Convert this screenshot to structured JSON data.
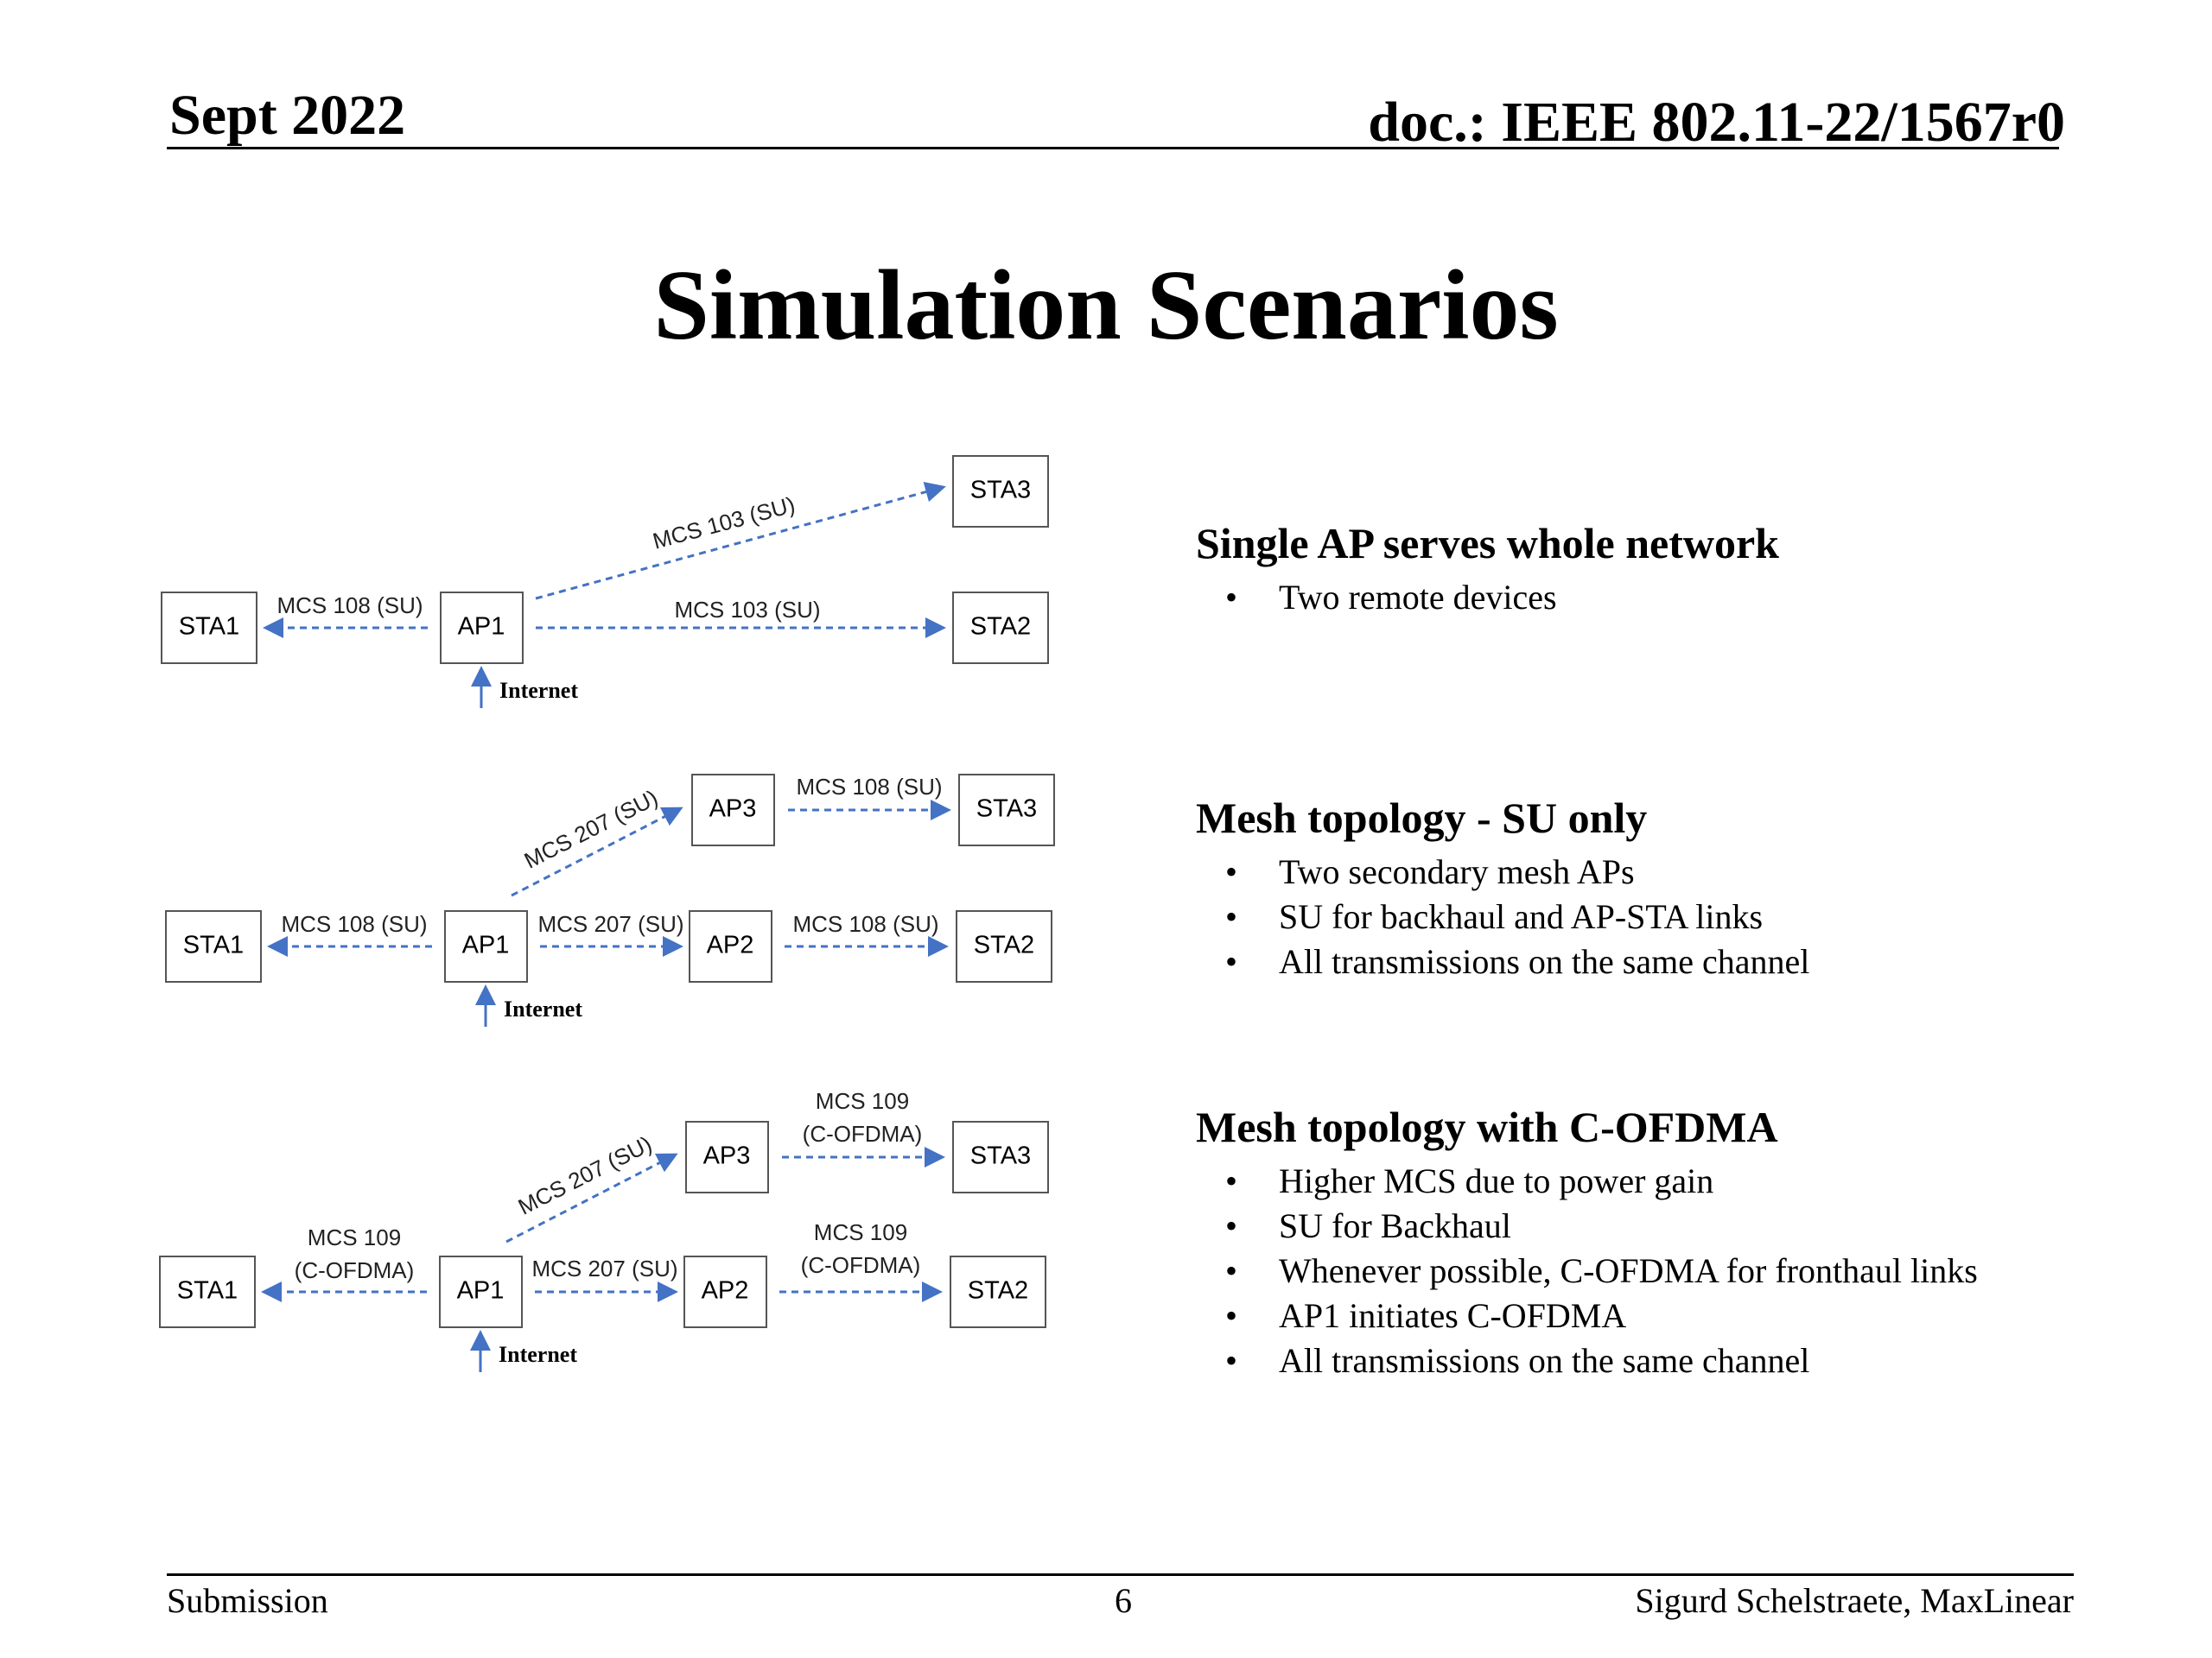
{
  "header": {
    "date": "Sept 2022",
    "doc": "doc.: IEEE 802.11-22/1567r0"
  },
  "title": "Simulation Scenarios",
  "diagrams": [
    {
      "nodes": {
        "sta1": "STA1",
        "ap1": "AP1",
        "sta3": "STA3",
        "sta2": "STA2"
      },
      "links": {
        "ap1_sta1": "MCS 108 (SU)",
        "ap1_sta3": "MCS 103 (SU)",
        "ap1_sta2": "MCS 103 (SU)"
      },
      "internet": "Internet"
    },
    {
      "nodes": {
        "sta1": "STA1",
        "ap1": "AP1",
        "ap3": "AP3",
        "sta3": "STA3",
        "ap2": "AP2",
        "sta2": "STA2"
      },
      "links": {
        "ap1_sta1": "MCS 108 (SU)",
        "ap1_ap3": "MCS 207 (SU)",
        "ap3_sta3": "MCS 108 (SU)",
        "ap1_ap2": "MCS 207 (SU)",
        "ap2_sta2": "MCS 108 (SU)"
      },
      "internet": "Internet"
    },
    {
      "nodes": {
        "sta1": "STA1",
        "ap1": "AP1",
        "ap3": "AP3",
        "sta3": "STA3",
        "ap2": "AP2",
        "sta2": "STA2"
      },
      "links": {
        "ap1_sta1_l1": "MCS 109",
        "ap1_sta1_l2": "(C-OFDMA)",
        "ap1_ap3": "MCS 207 (SU)",
        "ap3_sta3_l1": "MCS 109",
        "ap3_sta3_l2": "(C-OFDMA)",
        "ap1_ap2": "MCS 207 (SU)",
        "ap2_sta2_l1": "MCS 109",
        "ap2_sta2_l2": "(C-OFDMA)"
      },
      "internet": "Internet"
    }
  ],
  "sections": [
    {
      "heading": "Single AP serves whole network",
      "bullets": [
        "Two remote devices"
      ]
    },
    {
      "heading": "Mesh topology -  SU only",
      "bullets": [
        "Two secondary mesh APs",
        "SU for backhaul and AP-STA links",
        "All transmissions on the same channel"
      ]
    },
    {
      "heading": "Mesh topology with C-OFDMA",
      "bullets": [
        "Higher MCS due to power gain",
        "SU for Backhaul",
        "Whenever possible, C-OFDMA for fronthaul links",
        "AP1 initiates C-OFDMA",
        "All transmissions on the same channel"
      ]
    }
  ],
  "footer": {
    "left": "Submission",
    "center": "6",
    "right": "Sigurd Schelstraete, MaxLinear"
  },
  "colors": {
    "arrow": "#4472c4"
  }
}
